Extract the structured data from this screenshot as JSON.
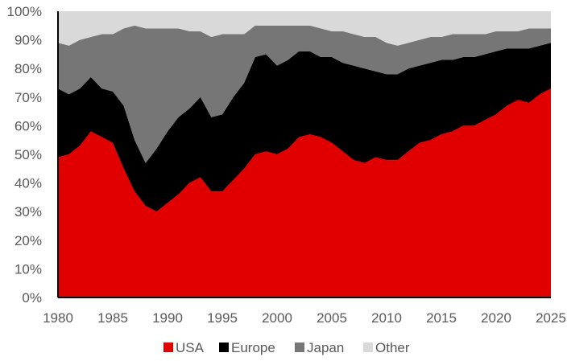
{
  "chart_data": {
    "type": "area",
    "stacked": true,
    "title": "",
    "xlabel": "",
    "ylabel": "",
    "xlim": [
      1980,
      2025
    ],
    "ylim": [
      0,
      100
    ],
    "grid": false,
    "legend_position": "bottom",
    "x_ticks": [
      "1980",
      "1985",
      "1990",
      "1995",
      "2000",
      "2005",
      "2010",
      "2015",
      "2020",
      "2025"
    ],
    "y_ticks": [
      "0%",
      "10%",
      "20%",
      "30%",
      "40%",
      "50%",
      "60%",
      "70%",
      "80%",
      "90%",
      "100%"
    ],
    "x": [
      1980,
      1981,
      1982,
      1983,
      1984,
      1985,
      1986,
      1987,
      1988,
      1989,
      1990,
      1991,
      1992,
      1993,
      1994,
      1995,
      1996,
      1997,
      1998,
      1999,
      2000,
      2001,
      2002,
      2003,
      2004,
      2005,
      2006,
      2007,
      2008,
      2009,
      2010,
      2011,
      2012,
      2013,
      2014,
      2015,
      2016,
      2017,
      2018,
      2019,
      2020,
      2021,
      2022,
      2023,
      2024,
      2025
    ],
    "series": [
      {
        "name": "USA",
        "color": "#e00000",
        "values": [
          49,
          50,
          53,
          58,
          56,
          54,
          45,
          37,
          32,
          30,
          33,
          36,
          40,
          42,
          37,
          37,
          41,
          45,
          50,
          51,
          50,
          52,
          56,
          57,
          56,
          54,
          51,
          48,
          47,
          49,
          48,
          48,
          51,
          54,
          55,
          57,
          58,
          60,
          60,
          62,
          64,
          67,
          69,
          68,
          71,
          73
        ]
      },
      {
        "name": "Europe",
        "color": "#000000",
        "values": [
          24,
          21,
          20,
          19,
          17,
          18,
          22,
          18,
          15,
          22,
          25,
          27,
          26,
          28,
          26,
          27,
          29,
          30,
          34,
          34,
          31,
          31,
          30,
          29,
          28,
          30,
          31,
          33,
          33,
          30,
          30,
          30,
          29,
          27,
          27,
          26,
          25,
          24,
          24,
          23,
          22,
          20,
          18,
          19,
          17,
          16
        ]
      },
      {
        "name": "Japan",
        "color": "#767676",
        "values": [
          16,
          17,
          17,
          14,
          19,
          20,
          27,
          40,
          47,
          42,
          36,
          31,
          27,
          23,
          28,
          28,
          22,
          17,
          11,
          10,
          14,
          12,
          9,
          9,
          10,
          9,
          11,
          11,
          11,
          12,
          11,
          10,
          9,
          9,
          9,
          8,
          9,
          8,
          8,
          7,
          7,
          6,
          6,
          7,
          6,
          5
        ]
      },
      {
        "name": "Other",
        "color": "#d9d9d9",
        "values": [
          11,
          12,
          10,
          9,
          8,
          8,
          6,
          5,
          6,
          6,
          6,
          6,
          7,
          7,
          9,
          8,
          8,
          8,
          5,
          5,
          5,
          5,
          5,
          5,
          6,
          7,
          7,
          8,
          9,
          9,
          11,
          12,
          11,
          10,
          9,
          9,
          8,
          8,
          8,
          8,
          7,
          7,
          7,
          6,
          6,
          6
        ]
      }
    ]
  }
}
